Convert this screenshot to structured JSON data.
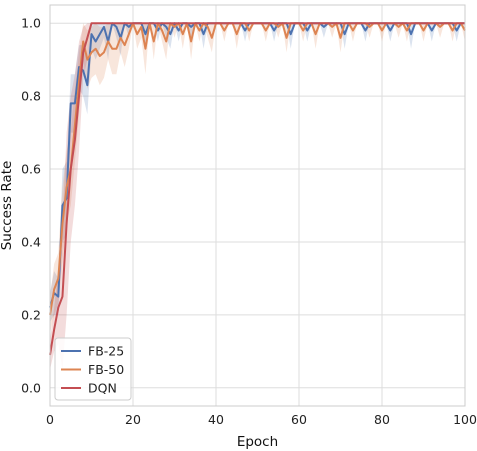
{
  "chart_data": {
    "type": "line",
    "xlabel": "Epoch",
    "ylabel": "Success Rate",
    "xlim": [
      0,
      100
    ],
    "ylim": [
      -0.05,
      1.05
    ],
    "xticks": [
      0,
      20,
      40,
      60,
      80,
      100
    ],
    "yticks": [
      0.0,
      0.2,
      0.4,
      0.6,
      0.8,
      1.0
    ],
    "xtick_labels": [
      "0",
      "20",
      "40",
      "60",
      "80",
      "100"
    ],
    "ytick_labels": [
      "0.0",
      "0.2",
      "0.4",
      "0.6",
      "0.8",
      "1.0"
    ],
    "grid": true,
    "legend_position": "bottom-left",
    "x": [
      0,
      1,
      2,
      3,
      4,
      5,
      6,
      7,
      8,
      9,
      10,
      11,
      12,
      13,
      14,
      15,
      16,
      17,
      18,
      19,
      20,
      21,
      22,
      23,
      24,
      25,
      26,
      27,
      28,
      29,
      30,
      31,
      32,
      33,
      34,
      35,
      36,
      37,
      38,
      39,
      40,
      41,
      42,
      43,
      44,
      45,
      46,
      47,
      48,
      49,
      50,
      51,
      52,
      53,
      54,
      55,
      56,
      57,
      58,
      59,
      60,
      61,
      62,
      63,
      64,
      65,
      66,
      67,
      68,
      69,
      70,
      71,
      72,
      73,
      74,
      75,
      76,
      77,
      78,
      79,
      80,
      81,
      82,
      83,
      84,
      85,
      86,
      87,
      88,
      89,
      90,
      91,
      92,
      93,
      94,
      95,
      96,
      97,
      98,
      99,
      100
    ],
    "series": [
      {
        "name": "FB-25",
        "color": "#4c72b0",
        "values": [
          0.22,
          0.26,
          0.25,
          0.5,
          0.52,
          0.78,
          0.78,
          0.88,
          0.87,
          0.83,
          0.97,
          0.95,
          0.97,
          0.99,
          0.95,
          1.0,
          0.99,
          0.96,
          1.0,
          0.99,
          1.0,
          1.0,
          1.0,
          0.97,
          1.0,
          1.0,
          0.98,
          1.0,
          0.99,
          0.97,
          1.0,
          0.98,
          1.0,
          1.0,
          0.99,
          1.0,
          1.0,
          0.97,
          1.0,
          1.0,
          1.0,
          1.0,
          1.0,
          1.0,
          1.0,
          1.0,
          1.0,
          0.98,
          1.0,
          1.0,
          1.0,
          1.0,
          1.0,
          1.0,
          0.98,
          1.0,
          1.0,
          1.0,
          0.97,
          1.0,
          1.0,
          1.0,
          0.98,
          1.0,
          1.0,
          1.0,
          0.99,
          1.0,
          1.0,
          1.0,
          1.0,
          0.97,
          1.0,
          1.0,
          1.0,
          1.0,
          0.98,
          1.0,
          1.0,
          1.0,
          1.0,
          1.0,
          0.98,
          1.0,
          1.0,
          1.0,
          1.0,
          0.97,
          1.0,
          1.0,
          1.0,
          1.0,
          0.98,
          1.0,
          1.0,
          1.0,
          1.0,
          1.0,
          0.98,
          1.0,
          1.0
        ],
        "lower": [
          0.18,
          0.2,
          0.2,
          0.4,
          0.42,
          0.7,
          0.7,
          0.82,
          0.8,
          0.75,
          0.93,
          0.9,
          0.93,
          0.96,
          0.9,
          1.0,
          0.96,
          0.91,
          1.0,
          0.96,
          1.0,
          1.0,
          1.0,
          0.93,
          1.0,
          1.0,
          0.95,
          1.0,
          0.96,
          0.93,
          1.0,
          0.95,
          1.0,
          1.0,
          0.96,
          1.0,
          1.0,
          0.93,
          1.0,
          1.0,
          1.0,
          1.0,
          1.0,
          1.0,
          1.0,
          1.0,
          1.0,
          0.95,
          1.0,
          1.0,
          1.0,
          1.0,
          1.0,
          1.0,
          0.95,
          1.0,
          1.0,
          1.0,
          0.93,
          1.0,
          1.0,
          1.0,
          0.95,
          1.0,
          1.0,
          1.0,
          0.96,
          1.0,
          1.0,
          1.0,
          1.0,
          0.93,
          1.0,
          1.0,
          1.0,
          1.0,
          0.95,
          1.0,
          1.0,
          1.0,
          1.0,
          1.0,
          0.95,
          1.0,
          1.0,
          1.0,
          1.0,
          0.93,
          1.0,
          1.0,
          1.0,
          1.0,
          0.95,
          1.0,
          1.0,
          1.0,
          1.0,
          1.0,
          0.95,
          1.0,
          1.0
        ],
        "upper": [
          0.26,
          0.32,
          0.3,
          0.6,
          0.62,
          0.86,
          0.86,
          0.94,
          0.94,
          0.91,
          1.0,
          1.0,
          1.0,
          1.0,
          1.0,
          1.0,
          1.0,
          1.0,
          1.0,
          1.0,
          1.0,
          1.0,
          1.0,
          1.0,
          1.0,
          1.0,
          1.0,
          1.0,
          1.0,
          1.0,
          1.0,
          1.0,
          1.0,
          1.0,
          1.0,
          1.0,
          1.0,
          1.0,
          1.0,
          1.0,
          1.0,
          1.0,
          1.0,
          1.0,
          1.0,
          1.0,
          1.0,
          1.0,
          1.0,
          1.0,
          1.0,
          1.0,
          1.0,
          1.0,
          1.0,
          1.0,
          1.0,
          1.0,
          1.0,
          1.0,
          1.0,
          1.0,
          1.0,
          1.0,
          1.0,
          1.0,
          1.0,
          1.0,
          1.0,
          1.0,
          1.0,
          1.0,
          1.0,
          1.0,
          1.0,
          1.0,
          1.0,
          1.0,
          1.0,
          1.0,
          1.0,
          1.0,
          1.0,
          1.0,
          1.0,
          1.0,
          1.0,
          1.0,
          1.0,
          1.0,
          1.0,
          1.0,
          1.0,
          1.0,
          1.0,
          1.0,
          1.0,
          1.0,
          1.0,
          1.0,
          1.0
        ]
      },
      {
        "name": "FB-50",
        "color": "#dd8452",
        "values": [
          0.2,
          0.27,
          0.3,
          0.45,
          0.55,
          0.6,
          0.72,
          0.84,
          0.95,
          0.9,
          0.92,
          0.93,
          0.91,
          0.92,
          0.95,
          0.93,
          0.93,
          0.96,
          0.94,
          0.97,
          1.0,
          0.97,
          0.99,
          0.93,
          1.0,
          0.95,
          1.0,
          0.98,
          0.95,
          1.0,
          0.99,
          1.0,
          0.97,
          1.0,
          0.95,
          1.0,
          0.98,
          1.0,
          0.99,
          0.96,
          1.0,
          1.0,
          0.98,
          1.0,
          1.0,
          0.97,
          1.0,
          1.0,
          0.98,
          1.0,
          1.0,
          1.0,
          0.98,
          1.0,
          1.0,
          0.99,
          1.0,
          0.96,
          1.0,
          1.0,
          1.0,
          0.98,
          1.0,
          1.0,
          0.97,
          1.0,
          1.0,
          1.0,
          0.99,
          1.0,
          0.96,
          1.0,
          1.0,
          0.98,
          1.0,
          1.0,
          1.0,
          0.99,
          1.0,
          1.0,
          0.98,
          1.0,
          1.0,
          1.0,
          0.99,
          1.0,
          0.98,
          1.0,
          1.0,
          1.0,
          0.98,
          1.0,
          1.0,
          1.0,
          0.99,
          1.0,
          1.0,
          0.98,
          1.0,
          1.0,
          0.98
        ],
        "lower": [
          0.15,
          0.2,
          0.23,
          0.35,
          0.45,
          0.5,
          0.62,
          0.75,
          0.9,
          0.82,
          0.85,
          0.86,
          0.83,
          0.85,
          0.9,
          0.86,
          0.86,
          0.92,
          0.88,
          0.93,
          1.0,
          0.93,
          0.96,
          0.86,
          1.0,
          0.9,
          1.0,
          0.95,
          0.9,
          1.0,
          0.96,
          1.0,
          0.93,
          1.0,
          0.9,
          1.0,
          0.95,
          1.0,
          0.96,
          0.92,
          1.0,
          1.0,
          0.95,
          1.0,
          1.0,
          0.93,
          1.0,
          1.0,
          0.95,
          1.0,
          1.0,
          1.0,
          0.95,
          1.0,
          1.0,
          0.96,
          1.0,
          0.92,
          1.0,
          1.0,
          1.0,
          0.95,
          1.0,
          1.0,
          0.93,
          1.0,
          1.0,
          1.0,
          0.96,
          1.0,
          0.92,
          1.0,
          1.0,
          0.95,
          1.0,
          1.0,
          1.0,
          0.96,
          1.0,
          1.0,
          0.95,
          1.0,
          1.0,
          1.0,
          0.96,
          1.0,
          0.95,
          1.0,
          1.0,
          1.0,
          0.95,
          1.0,
          1.0,
          1.0,
          0.96,
          1.0,
          1.0,
          0.95,
          1.0,
          1.0,
          0.95
        ],
        "upper": [
          0.25,
          0.34,
          0.37,
          0.55,
          0.65,
          0.7,
          0.82,
          0.92,
          1.0,
          0.98,
          0.99,
          1.0,
          0.99,
          0.99,
          1.0,
          1.0,
          1.0,
          1.0,
          1.0,
          1.0,
          1.0,
          1.0,
          1.0,
          1.0,
          1.0,
          1.0,
          1.0,
          1.0,
          1.0,
          1.0,
          1.0,
          1.0,
          1.0,
          1.0,
          1.0,
          1.0,
          1.0,
          1.0,
          1.0,
          1.0,
          1.0,
          1.0,
          1.0,
          1.0,
          1.0,
          1.0,
          1.0,
          1.0,
          1.0,
          1.0,
          1.0,
          1.0,
          1.0,
          1.0,
          1.0,
          1.0,
          1.0,
          1.0,
          1.0,
          1.0,
          1.0,
          1.0,
          1.0,
          1.0,
          1.0,
          1.0,
          1.0,
          1.0,
          1.0,
          1.0,
          1.0,
          1.0,
          1.0,
          1.0,
          1.0,
          1.0,
          1.0,
          1.0,
          1.0,
          1.0,
          1.0,
          1.0,
          1.0,
          1.0,
          1.0,
          1.0,
          1.0,
          1.0,
          1.0,
          1.0,
          1.0,
          1.0,
          1.0,
          1.0,
          1.0,
          1.0,
          1.0,
          1.0,
          1.0,
          1.0,
          1.0
        ]
      },
      {
        "name": "DQN",
        "color": "#c44e52",
        "values": [
          0.09,
          0.16,
          0.22,
          0.25,
          0.45,
          0.6,
          0.68,
          0.8,
          0.92,
          0.96,
          1.0,
          1.0,
          1.0,
          1.0,
          1.0,
          1.0,
          1.0,
          1.0,
          1.0,
          1.0,
          1.0,
          1.0,
          1.0,
          1.0,
          1.0,
          1.0,
          1.0,
          1.0,
          1.0,
          1.0,
          1.0,
          1.0,
          1.0,
          1.0,
          1.0,
          1.0,
          1.0,
          1.0,
          1.0,
          1.0,
          1.0,
          1.0,
          1.0,
          1.0,
          1.0,
          1.0,
          1.0,
          1.0,
          1.0,
          1.0,
          1.0,
          1.0,
          1.0,
          1.0,
          1.0,
          1.0,
          1.0,
          1.0,
          1.0,
          1.0,
          1.0,
          1.0,
          1.0,
          1.0,
          1.0,
          1.0,
          1.0,
          1.0,
          1.0,
          1.0,
          1.0,
          1.0,
          1.0,
          1.0,
          1.0,
          1.0,
          1.0,
          1.0,
          1.0,
          1.0,
          1.0,
          1.0,
          1.0,
          1.0,
          1.0,
          1.0,
          1.0,
          1.0,
          1.0,
          1.0,
          1.0,
          1.0,
          1.0,
          1.0,
          1.0,
          1.0,
          1.0,
          1.0,
          1.0,
          1.0,
          1.0
        ],
        "lower": [
          0.05,
          0.1,
          0.12,
          0.05,
          0.2,
          0.4,
          0.5,
          0.65,
          0.85,
          0.9,
          1.0,
          1.0,
          1.0,
          1.0,
          1.0,
          1.0,
          1.0,
          1.0,
          1.0,
          1.0,
          1.0,
          1.0,
          1.0,
          1.0,
          1.0,
          1.0,
          1.0,
          1.0,
          1.0,
          1.0,
          1.0,
          1.0,
          1.0,
          1.0,
          1.0,
          1.0,
          1.0,
          1.0,
          1.0,
          1.0,
          1.0,
          1.0,
          1.0,
          1.0,
          1.0,
          1.0,
          1.0,
          1.0,
          1.0,
          1.0,
          1.0,
          1.0,
          1.0,
          1.0,
          1.0,
          1.0,
          1.0,
          1.0,
          1.0,
          1.0,
          1.0,
          1.0,
          1.0,
          1.0,
          1.0,
          1.0,
          1.0,
          1.0,
          1.0,
          1.0,
          1.0,
          1.0,
          1.0,
          1.0,
          1.0,
          1.0,
          1.0,
          1.0,
          1.0,
          1.0,
          1.0,
          1.0,
          1.0,
          1.0,
          1.0,
          1.0,
          1.0,
          1.0,
          1.0,
          1.0,
          1.0,
          1.0,
          1.0,
          1.0,
          1.0,
          1.0,
          1.0,
          1.0,
          1.0,
          1.0,
          1.0
        ],
        "upper": [
          0.13,
          0.22,
          0.32,
          0.45,
          0.7,
          0.8,
          0.86,
          0.95,
          0.99,
          1.0,
          1.0,
          1.0,
          1.0,
          1.0,
          1.0,
          1.0,
          1.0,
          1.0,
          1.0,
          1.0,
          1.0,
          1.0,
          1.0,
          1.0,
          1.0,
          1.0,
          1.0,
          1.0,
          1.0,
          1.0,
          1.0,
          1.0,
          1.0,
          1.0,
          1.0,
          1.0,
          1.0,
          1.0,
          1.0,
          1.0,
          1.0,
          1.0,
          1.0,
          1.0,
          1.0,
          1.0,
          1.0,
          1.0,
          1.0,
          1.0,
          1.0,
          1.0,
          1.0,
          1.0,
          1.0,
          1.0,
          1.0,
          1.0,
          1.0,
          1.0,
          1.0,
          1.0,
          1.0,
          1.0,
          1.0,
          1.0,
          1.0,
          1.0,
          1.0,
          1.0,
          1.0,
          1.0,
          1.0,
          1.0,
          1.0,
          1.0,
          1.0,
          1.0,
          1.0,
          1.0,
          1.0,
          1.0,
          1.0,
          1.0,
          1.0,
          1.0,
          1.0,
          1.0,
          1.0,
          1.0,
          1.0,
          1.0,
          1.0,
          1.0,
          1.0,
          1.0,
          1.0,
          1.0,
          1.0,
          1.0,
          1.0
        ]
      }
    ]
  }
}
